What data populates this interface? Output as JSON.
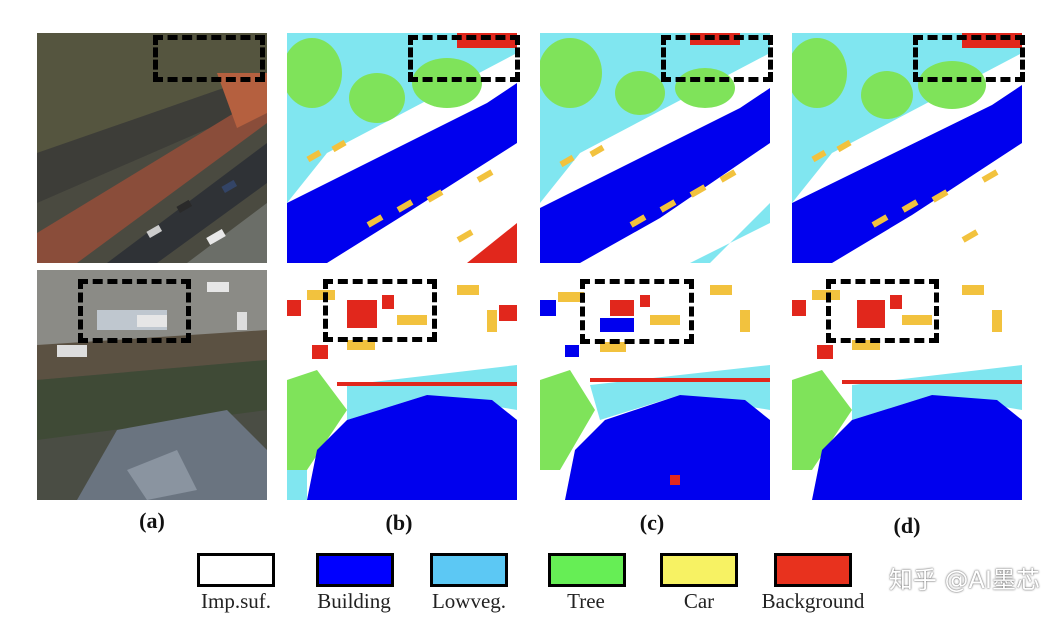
{
  "captions": [
    "(a)",
    "(b)",
    "(c)",
    "(d)"
  ],
  "legend": [
    {
      "label": "Imp.suf.",
      "color": "#ffffff"
    },
    {
      "label": "Building",
      "color": "#0000ff"
    },
    {
      "label": "Lowveg.",
      "color": "#5cc8f4"
    },
    {
      "label": "Tree",
      "color": "#66ee55"
    },
    {
      "label": "Car",
      "color": "#f7f263"
    },
    {
      "label": "Background",
      "color": "#e8321e"
    }
  ],
  "watermark": "知乎 @AI墨芯",
  "class_colors": {
    "imp_surf": "#ffffff",
    "building": "#0000ee",
    "lowveg": "#80e6f0",
    "tree": "#7fe35a",
    "car": "#f2c23e",
    "background": "#e1271c"
  }
}
